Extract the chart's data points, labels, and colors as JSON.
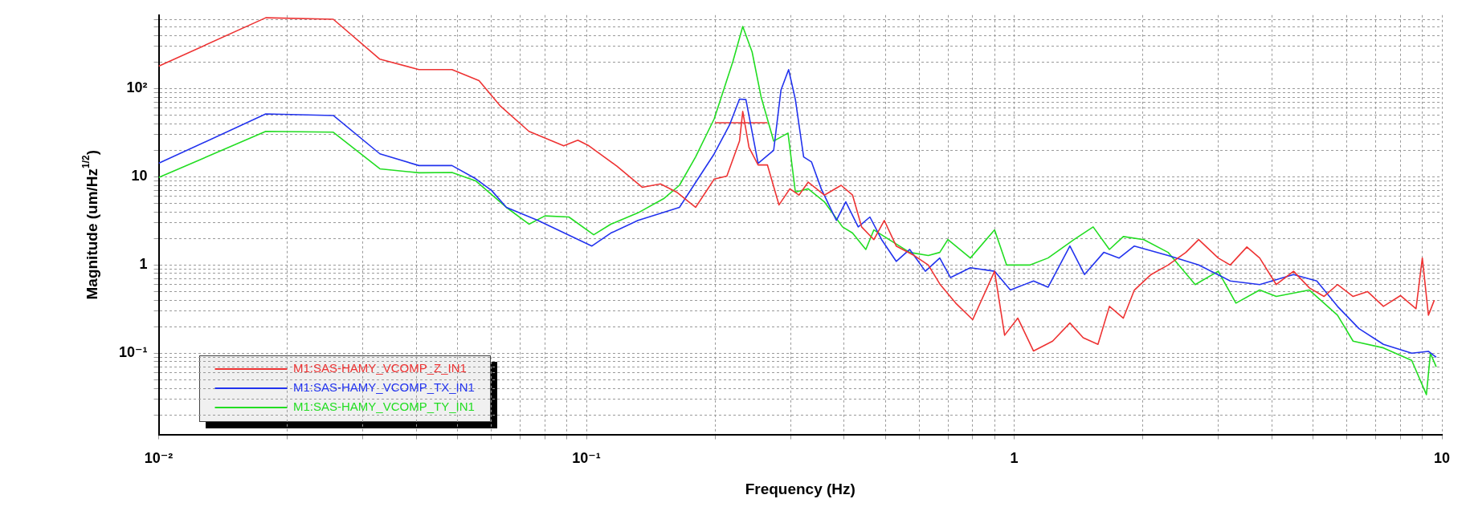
{
  "chart_data": {
    "type": "line",
    "xlabel": "Frequency (Hz)",
    "ylabel": "Magnitude (um/Hz$^{1/2}$)",
    "log": "xy",
    "grid": true,
    "legend": "bottom left",
    "marker": "none",
    "line_style": "solid",
    "xlim": [
      0.01,
      10
    ],
    "ylim": [
      0.012,
      680
    ],
    "xticks": [
      {
        "value": 0.01,
        "label": "10⁻²"
      },
      {
        "value": 0.02,
        "label": null
      },
      {
        "value": 0.03,
        "label": null
      },
      {
        "value": 0.04,
        "label": null
      },
      {
        "value": 0.05,
        "label": null
      },
      {
        "value": 0.06,
        "label": null
      },
      {
        "value": 0.07,
        "label": null
      },
      {
        "value": 0.08,
        "label": null
      },
      {
        "value": 0.09,
        "label": null
      },
      {
        "value": 0.1,
        "label": "10⁻¹"
      },
      {
        "value": 0.2,
        "label": null
      },
      {
        "value": 0.3,
        "label": null
      },
      {
        "value": 0.4,
        "label": null
      },
      {
        "value": 0.5,
        "label": null
      },
      {
        "value": 0.6,
        "label": null
      },
      {
        "value": 0.7,
        "label": null
      },
      {
        "value": 0.8,
        "label": null
      },
      {
        "value": 0.9,
        "label": null
      },
      1,
      {
        "value": 2,
        "label": null
      },
      {
        "value": 3,
        "label": null
      },
      {
        "value": 4,
        "label": null
      },
      {
        "value": 5,
        "label": null
      },
      {
        "value": 6,
        "label": null
      },
      {
        "value": 7,
        "label": null
      },
      {
        "value": 8,
        "label": null
      },
      {
        "value": 9,
        "label": null
      },
      10
    ],
    "yticks": [
      {
        "value": 0.02,
        "label": null
      },
      {
        "value": 0.03,
        "label": null
      },
      {
        "value": 0.04,
        "label": null
      },
      {
        "value": 0.05,
        "label": null
      },
      {
        "value": 0.06,
        "label": null
      },
      {
        "value": 0.07,
        "label": null
      },
      {
        "value": 0.08,
        "label": null
      },
      {
        "value": 0.09,
        "label": null
      },
      {
        "value": 0.1,
        "label": "10⁻¹"
      },
      {
        "value": 0.2,
        "label": null
      },
      {
        "value": 0.3,
        "label": null
      },
      {
        "value": 0.4,
        "label": null
      },
      {
        "value": 0.5,
        "label": null
      },
      {
        "value": 0.6,
        "label": null
      },
      {
        "value": 0.7,
        "label": null
      },
      {
        "value": 0.8,
        "label": null
      },
      {
        "value": 0.9,
        "label": null
      },
      1,
      {
        "value": 2,
        "label": null
      },
      {
        "value": 3,
        "label": null
      },
      {
        "value": 4,
        "label": null
      },
      {
        "value": 5,
        "label": null
      },
      {
        "value": 6,
        "label": null
      },
      {
        "value": 7,
        "label": null
      },
      {
        "value": 8,
        "label": null
      },
      {
        "value": 9,
        "label": null
      },
      10,
      {
        "value": 20,
        "label": null
      },
      {
        "value": 30,
        "label": null
      },
      {
        "value": 40,
        "label": null
      },
      {
        "value": 50,
        "label": null
      },
      {
        "value": 60,
        "label": null
      },
      {
        "value": 70,
        "label": null
      },
      {
        "value": 80,
        "label": null
      },
      {
        "value": 90,
        "label": null
      },
      {
        "value": 100,
        "label": "10²"
      },
      {
        "value": 200,
        "label": null
      },
      {
        "value": 300,
        "label": null
      },
      {
        "value": 400,
        "label": null
      },
      {
        "value": 500,
        "label": null
      },
      {
        "value": 600,
        "label": null
      }
    ],
    "series": [
      {
        "name": "M1:SAS-HAMY_VCOMP_Z_IN1",
        "color": "#ee3333",
        "x": [
          0.01,
          0.0178,
          0.0256,
          0.0329,
          0.0406,
          0.0485,
          0.0561,
          0.063,
          0.0734,
          0.0885,
          0.0955,
          0.1014,
          0.118,
          0.135,
          0.149,
          0.1625,
          0.18,
          0.199,
          0.213,
          0.228,
          0.232,
          0.24,
          0.252,
          0.265,
          0.282,
          0.299,
          0.314,
          0.33,
          0.36,
          0.394,
          0.419,
          0.44,
          0.47,
          0.497,
          0.53,
          0.584,
          0.63,
          0.67,
          0.73,
          0.8,
          0.9,
          0.95,
          1.02,
          1.11,
          1.23,
          1.35,
          1.45,
          1.57,
          1.67,
          1.8,
          1.91,
          2.09,
          2.29,
          2.52,
          2.7,
          3.0,
          3.2,
          3.5,
          3.75,
          4.1,
          4.5,
          4.9,
          5.3,
          5.7,
          6.2,
          6.7,
          7.3,
          8.0,
          8.7,
          9.0,
          9.3,
          9.6
        ],
        "values": [
          179,
          634,
          610,
          215,
          164,
          164,
          123,
          63,
          32.7,
          22.4,
          26,
          22.4,
          13.1,
          7.6,
          8.3,
          6.7,
          4.5,
          9.4,
          10.2,
          25.4,
          55,
          21.5,
          13.6,
          13.6,
          4.8,
          7.3,
          6.2,
          8.7,
          6.2,
          8.0,
          6.2,
          2.7,
          1.94,
          3.2,
          1.64,
          1.28,
          1.0,
          0.61,
          0.37,
          0.24,
          0.85,
          0.16,
          0.25,
          0.106,
          0.137,
          0.22,
          0.15,
          0.126,
          0.34,
          0.25,
          0.52,
          0.78,
          1.0,
          1.39,
          1.94,
          1.2,
          1.0,
          1.6,
          1.2,
          0.6,
          0.85,
          0.55,
          0.44,
          0.6,
          0.44,
          0.5,
          0.34,
          0.45,
          0.32,
          1.2,
          0.27,
          0.4
        ]
      },
      {
        "name": "M1:SAS-HAMY_VCOMP_TX_IN1",
        "color": "#2233ee",
        "x": [
          0.01,
          0.0178,
          0.0256,
          0.0329,
          0.0406,
          0.0485,
          0.0551,
          0.06,
          0.065,
          0.077,
          0.103,
          0.114,
          0.132,
          0.165,
          0.18,
          0.199,
          0.216,
          0.228,
          0.236,
          0.252,
          0.274,
          0.285,
          0.297,
          0.308,
          0.322,
          0.336,
          0.354,
          0.384,
          0.404,
          0.432,
          0.46,
          0.49,
          0.53,
          0.57,
          0.62,
          0.67,
          0.71,
          0.79,
          0.9,
          0.98,
          1.11,
          1.2,
          1.35,
          1.46,
          1.62,
          1.76,
          1.91,
          2.29,
          2.7,
          3.2,
          3.75,
          4.5,
          5.1,
          5.7,
          6.4,
          7.3,
          8.5,
          9.3,
          9.7
        ],
        "values": [
          14.2,
          51.5,
          49.5,
          18.2,
          13.4,
          13.4,
          9.5,
          7,
          4.5,
          3.2,
          1.64,
          2.3,
          3.2,
          4.5,
          8.6,
          18.2,
          38.5,
          76,
          75,
          14.2,
          19.9,
          96,
          164,
          75,
          16.8,
          14.7,
          7.3,
          3.2,
          5.2,
          2.7,
          3.5,
          1.94,
          1.1,
          1.5,
          0.85,
          1.2,
          0.72,
          0.93,
          0.85,
          0.52,
          0.66,
          0.56,
          1.64,
          0.78,
          1.39,
          1.2,
          1.64,
          1.28,
          1.0,
          0.66,
          0.6,
          0.78,
          0.66,
          0.34,
          0.19,
          0.126,
          0.1,
          0.105,
          0.09
        ]
      },
      {
        "name": "M1:SAS-HAMY_VCOMP_TY_IN1",
        "color": "#22dd22",
        "x": [
          0.01,
          0.0178,
          0.0256,
          0.0329,
          0.0406,
          0.0485,
          0.0551,
          0.065,
          0.0734,
          0.08,
          0.091,
          0.104,
          0.114,
          0.132,
          0.152,
          0.165,
          0.18,
          0.199,
          0.22,
          0.232,
          0.244,
          0.256,
          0.274,
          0.296,
          0.308,
          0.33,
          0.36,
          0.397,
          0.419,
          0.45,
          0.47,
          0.51,
          0.57,
          0.63,
          0.67,
          0.7,
          0.79,
          0.9,
          0.96,
          1.09,
          1.2,
          1.38,
          1.53,
          1.67,
          1.8,
          2.01,
          2.29,
          2.65,
          3.0,
          3.3,
          3.75,
          4.1,
          4.9,
          5.7,
          6.2,
          7.3,
          8.5,
          9.2,
          9.4,
          9.7
        ],
        "values": [
          9.8,
          32.7,
          32,
          12.3,
          11.1,
          11.2,
          9.0,
          4.5,
          2.9,
          3.6,
          3.5,
          2.2,
          2.9,
          3.9,
          5.7,
          8.0,
          16.8,
          45.5,
          202,
          505,
          260,
          81,
          25.4,
          31.3,
          6.7,
          7.3,
          5.2,
          2.7,
          2.3,
          1.5,
          2.5,
          1.94,
          1.39,
          1.28,
          1.39,
          1.94,
          1.2,
          2.5,
          1.0,
          1.0,
          1.2,
          1.94,
          2.7,
          1.5,
          2.1,
          1.94,
          1.39,
          0.6,
          0.85,
          0.37,
          0.52,
          0.44,
          0.52,
          0.27,
          0.137,
          0.115,
          0.083,
          0.034,
          0.1,
          0.07
        ]
      },
      {
        "color": "#ee3333",
        "x": [
          0.2,
          0.265
        ],
        "values": [
          41,
          41
        ]
      }
    ]
  }
}
